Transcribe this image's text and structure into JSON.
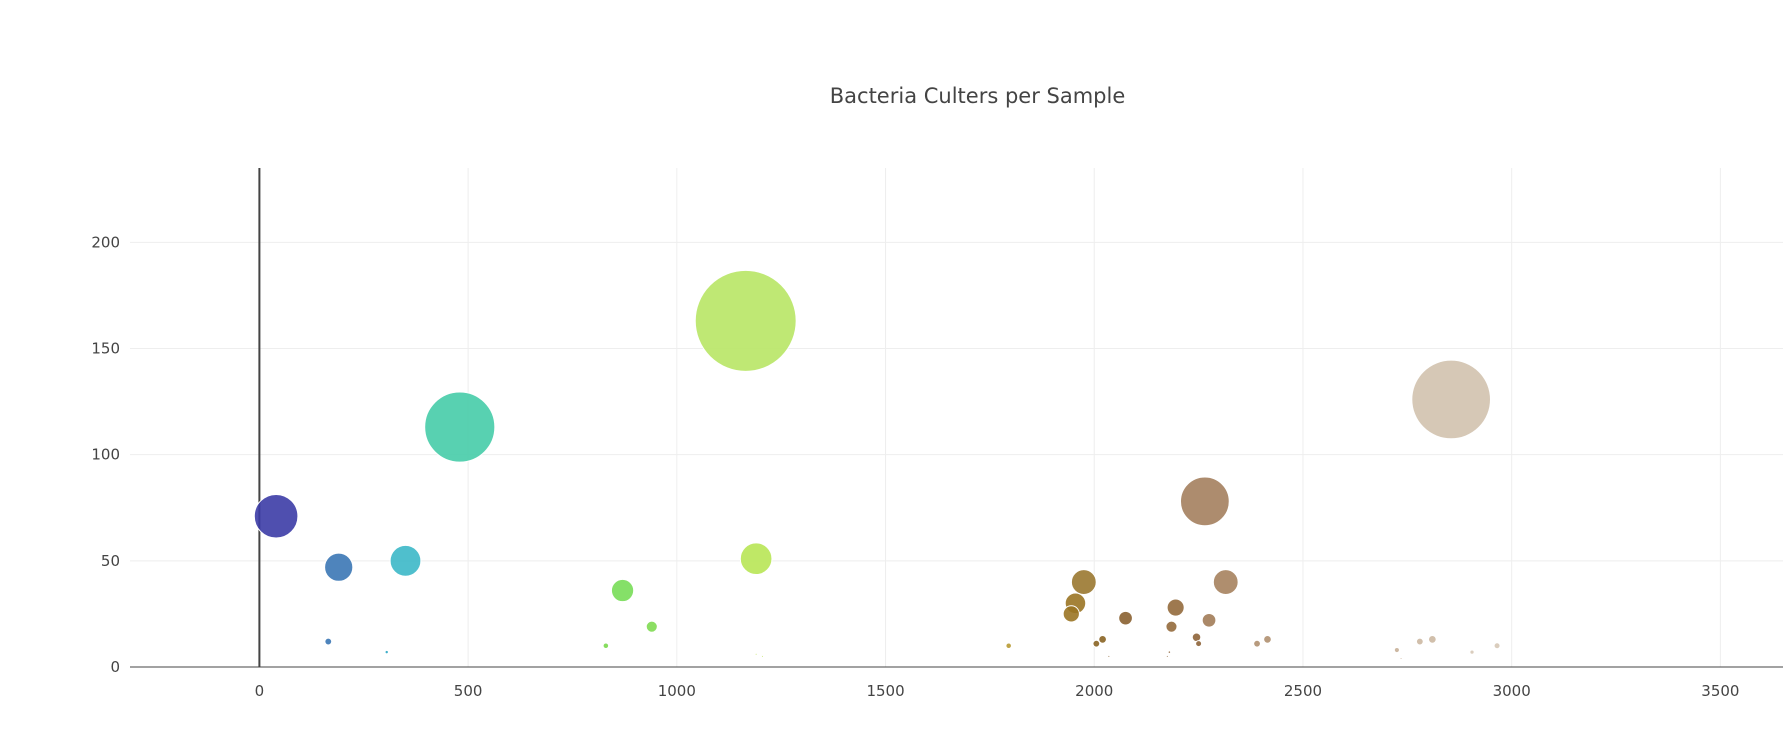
{
  "chart_data": {
    "type": "scatter",
    "title": "Bacteria Culters per Sample",
    "xlim": [
      -310,
      3650
    ],
    "ylim": [
      0,
      235
    ],
    "xticks": [
      0,
      500,
      1000,
      1500,
      2000,
      2500,
      3000,
      3500
    ],
    "yticks": [
      0,
      50,
      100,
      150,
      200
    ],
    "grid": true,
    "bubbles": [
      {
        "x": 40,
        "y": 71,
        "r": 0.2089,
        "color": "#3c3ca6"
      },
      {
        "x": 190,
        "y": 47,
        "r": 0.1352,
        "color": "#3b77b5"
      },
      {
        "x": 165,
        "y": 12,
        "r": 0.0328,
        "color": "#3b77b5"
      },
      {
        "x": 305,
        "y": 7,
        "r": 0.0164,
        "color": "#2aa6c4"
      },
      {
        "x": 350,
        "y": 50,
        "r": 0.1475,
        "color": "#3cb8c8"
      },
      {
        "x": 480,
        "y": 113,
        "r": 0.3361,
        "color": "#46cca8"
      },
      {
        "x": 830,
        "y": 10,
        "r": 0.0266,
        "color": "#7ad94e"
      },
      {
        "x": 870,
        "y": 36,
        "r": 0.1066,
        "color": "#78dd58"
      },
      {
        "x": 940,
        "y": 19,
        "r": 0.0533,
        "color": "#80da52"
      },
      {
        "x": 1165,
        "y": 163,
        "r": 0.4836,
        "color": "#b8e565"
      },
      {
        "x": 1190,
        "y": 51,
        "r": 0.1516,
        "color": "#b8e655"
      },
      {
        "x": 1190,
        "y": 6,
        "r": 0.0082,
        "color": "#c0e35a"
      },
      {
        "x": 1205,
        "y": 5,
        "r": 0.0066,
        "color": "#c0e35a"
      },
      {
        "x": 1795,
        "y": 10,
        "r": 0.0266,
        "color": "#b89a32"
      },
      {
        "x": 1975,
        "y": 40,
        "r": 0.1189,
        "color": "#9a7830"
      },
      {
        "x": 1955,
        "y": 30,
        "r": 0.0984,
        "color": "#9a7424"
      },
      {
        "x": 1945,
        "y": 25,
        "r": 0.0779,
        "color": "#9a7424"
      },
      {
        "x": 2005,
        "y": 11,
        "r": 0.0328,
        "color": "#8a6424"
      },
      {
        "x": 2020,
        "y": 13,
        "r": 0.0369,
        "color": "#8a6424"
      },
      {
        "x": 2075,
        "y": 23,
        "r": 0.0656,
        "color": "#8a6030"
      },
      {
        "x": 2035,
        "y": 5,
        "r": 0.0082,
        "color": "#8a6030"
      },
      {
        "x": 2195,
        "y": 28,
        "r": 0.082,
        "color": "#946a3c"
      },
      {
        "x": 2185,
        "y": 19,
        "r": 0.0533,
        "color": "#946a3c"
      },
      {
        "x": 2245,
        "y": 14,
        "r": 0.041,
        "color": "#8e6438"
      },
      {
        "x": 2250,
        "y": 11,
        "r": 0.0287,
        "color": "#8e6438"
      },
      {
        "x": 2175,
        "y": 5,
        "r": 0.0082,
        "color": "#8e6438"
      },
      {
        "x": 2180,
        "y": 7,
        "r": 0.0123,
        "color": "#8e6438"
      },
      {
        "x": 2265,
        "y": 78,
        "r": 0.2336,
        "color": "#a4805e"
      },
      {
        "x": 2275,
        "y": 22,
        "r": 0.0656,
        "color": "#a27c58"
      },
      {
        "x": 2315,
        "y": 40,
        "r": 0.1189,
        "color": "#a6825e"
      },
      {
        "x": 2390,
        "y": 11,
        "r": 0.0328,
        "color": "#b09070"
      },
      {
        "x": 2415,
        "y": 13,
        "r": 0.0369,
        "color": "#b09070"
      },
      {
        "x": 2725,
        "y": 8,
        "r": 0.0246,
        "color": "#c8b098"
      },
      {
        "x": 2735,
        "y": 4,
        "r": 0.0082,
        "color": "#c8b098"
      },
      {
        "x": 2780,
        "y": 12,
        "r": 0.0328,
        "color": "#ccb8a2"
      },
      {
        "x": 2810,
        "y": 13,
        "r": 0.0369,
        "color": "#ccb8a2"
      },
      {
        "x": 2855,
        "y": 126,
        "r": 0.377,
        "color": "#d2c2ae"
      },
      {
        "x": 2905,
        "y": 7,
        "r": 0.0205,
        "color": "#d6c8b6"
      },
      {
        "x": 2965,
        "y": 10,
        "r": 0.0287,
        "color": "#d6c8b6"
      }
    ]
  }
}
